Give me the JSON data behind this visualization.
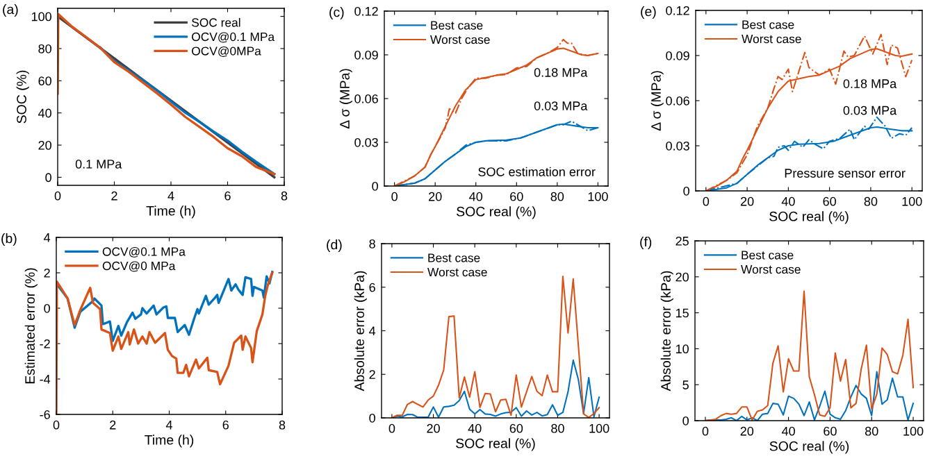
{
  "chart_data": [
    {
      "type": "line",
      "title": "(a)",
      "xlabel": "Time (h)",
      "ylabel": "SOC (%)",
      "xlim": [
        0,
        8
      ],
      "ylim": [
        -5,
        105
      ],
      "xticks": [
        0,
        2,
        4,
        6,
        8
      ],
      "yticks": [
        0,
        20,
        40,
        60,
        80,
        100
      ],
      "grid": false,
      "legend": "top right",
      "annotations": [
        "0.1 MPa"
      ],
      "series": [
        {
          "name": "SOC real",
          "color": "#404040",
          "x": [
            0,
            1,
            2,
            3,
            4,
            5,
            6,
            7,
            7.65
          ],
          "values": [
            100,
            86.9,
            73.9,
            60.8,
            47.7,
            34.6,
            21.6,
            8.5,
            0
          ]
        },
        {
          "name": "OCV@0.1 MPa",
          "color": "#0072bd",
          "x": [
            1.5,
            2,
            2.5,
            3,
            3.5,
            4,
            4.5,
            5,
            5.5,
            6,
            6.5,
            7,
            7.65
          ],
          "values": [
            80.7,
            72.0,
            66.5,
            60.4,
            54.1,
            47.1,
            40.2,
            34.5,
            28.5,
            22.8,
            16.0,
            9.7,
            2.0
          ]
        },
        {
          "name": "OCV@0MPa",
          "color": "#d95319",
          "x": [
            0,
            0.02,
            0.5,
            1,
            1.5,
            2,
            2.5,
            3,
            3.5,
            4,
            4.5,
            5,
            5.5,
            6,
            6.5,
            7,
            7.65
          ],
          "values": [
            52,
            101.5,
            93.7,
            87.2,
            80.6,
            71.5,
            65.7,
            59.0,
            52.3,
            45.2,
            37.6,
            31.4,
            25.1,
            18.1,
            13.1,
            6.5,
            2.0
          ]
        }
      ]
    },
    {
      "type": "line",
      "title": "(b)",
      "xlabel": "Time (h)",
      "ylabel": "Estimated error (%)",
      "xlim": [
        0,
        8
      ],
      "ylim": [
        -6,
        4
      ],
      "xticks": [
        0,
        2,
        4,
        6,
        8
      ],
      "yticks": [
        -6,
        -4,
        -2,
        0,
        2,
        4
      ],
      "grid": false,
      "legend": "top left",
      "series": [
        {
          "name": "OCV@0.1 MPa",
          "color": "#0072bd",
          "x": [
            0,
            0.4,
            0.65,
            0.85,
            1.3,
            1.35,
            1.6,
            1.65,
            1.9,
            2.0,
            2.2,
            2.3,
            2.5,
            2.7,
            2.8,
            3.0,
            3.05,
            3.2,
            3.45,
            3.55,
            3.8,
            3.9,
            3.95,
            4.2,
            4.3,
            4.55,
            4.7,
            4.9,
            5.0,
            5.05,
            5.3,
            5.4,
            5.6,
            5.7,
            5.75,
            6.1,
            6.2,
            6.35,
            6.45,
            6.6,
            6.7,
            6.9,
            6.95,
            7.0,
            7.3,
            7.35,
            7.45,
            7.55,
            7.65
          ],
          "values": [
            1.4,
            0.55,
            -1.1,
            -0.2,
            0.4,
            0.55,
            0.15,
            -0.9,
            -0.75,
            -1.85,
            -1.0,
            -1.55,
            -0.8,
            -0.25,
            -0.6,
            -0.35,
            0.0,
            -0.3,
            0.15,
            -0.35,
            0.05,
            0.1,
            -0.55,
            -0.55,
            -1.35,
            -0.95,
            -1.5,
            -0.5,
            -0.05,
            -0.3,
            0.7,
            0.2,
            0.55,
            0.75,
            0.3,
            1.65,
            1.0,
            1.35,
            1.05,
            0.75,
            1.75,
            1.65,
            0.7,
            1.2,
            1.0,
            0.6,
            1.8,
            1.4,
            2.05
          ]
        },
        {
          "name": "OCV@0 MPa",
          "color": "#d95319",
          "x": [
            0,
            0.02,
            0.4,
            0.65,
            0.85,
            1.2,
            1.3,
            1.55,
            1.6,
            1.9,
            2.0,
            2.2,
            2.3,
            2.55,
            2.6,
            2.75,
            2.9,
            3.05,
            3.2,
            3.3,
            3.5,
            3.85,
            3.95,
            4.1,
            4.25,
            4.3,
            4.5,
            4.6,
            4.7,
            4.95,
            5.05,
            5.35,
            5.4,
            5.7,
            5.8,
            6.1,
            6.3,
            6.55,
            6.6,
            6.7,
            6.9,
            6.95,
            7.1,
            7.3,
            7.4,
            7.5,
            7.65
          ],
          "values": [
            -6,
            1.5,
            0.55,
            -0.95,
            -0.1,
            1.15,
            0.3,
            -0.05,
            -1.2,
            -1.4,
            -2.4,
            -1.6,
            -2.3,
            -1.35,
            -2.05,
            -1.2,
            -2.0,
            -1.6,
            -2.0,
            -1.35,
            -1.95,
            -1.4,
            -2.35,
            -2.7,
            -2.85,
            -3.65,
            -3.65,
            -3.2,
            -3.85,
            -2.9,
            -3.4,
            -2.8,
            -3.5,
            -3.6,
            -4.3,
            -3.25,
            -1.95,
            -1.55,
            -2.35,
            -1.6,
            -2.25,
            -3.05,
            -1.3,
            -0.35,
            0.7,
            1.35,
            2.0
          ]
        }
      ]
    },
    {
      "type": "line",
      "title": "(c)",
      "xlabel": "SOC real (%)",
      "ylabel": "Δ σ (MPa)",
      "xlim": [
        -5,
        105
      ],
      "ylim": [
        0,
        0.12
      ],
      "xticks": [
        0,
        20,
        40,
        60,
        80,
        100
      ],
      "yticks": [
        0,
        0.03,
        0.06,
        0.09,
        0.12
      ],
      "grid": false,
      "legend": "top left",
      "annotations": [
        "0.18 MPa",
        "0.03 MPa",
        "SOC estimation error"
      ],
      "series": [
        {
          "name": "Best case",
          "color": "#0072bd",
          "x": [
            0,
            10,
            15,
            20,
            25,
            30,
            35,
            40,
            45,
            55,
            62,
            70,
            80,
            83,
            90,
            95,
            100
          ],
          "values": [
            0,
            0.002,
            0.005,
            0.011,
            0.017,
            0.022,
            0.027,
            0.03,
            0.031,
            0.0315,
            0.033,
            0.037,
            0.042,
            0.0425,
            0.041,
            0.04,
            0.04
          ]
        },
        {
          "name": "Worst case",
          "color": "#d95319",
          "x": [
            0,
            5,
            10,
            15,
            18,
            20,
            25,
            30,
            35,
            40,
            50,
            55,
            60,
            65,
            70,
            80,
            83,
            88,
            92,
            95,
            100
          ],
          "values": [
            0,
            0.003,
            0.007,
            0.013,
            0.022,
            0.027,
            0.041,
            0.055,
            0.066,
            0.073,
            0.076,
            0.077,
            0.08,
            0.083,
            0.088,
            0.094,
            0.0945,
            0.092,
            0.09,
            0.0895,
            0.091
          ]
        },
        {
          "color": "#0072bd",
          "line_style": "dashdot",
          "x": [
            0,
            10,
            15,
            20,
            25,
            30,
            35,
            40,
            45,
            55,
            62,
            70,
            80,
            83,
            87,
            95,
            100
          ],
          "values": [
            0,
            0.002,
            0.005,
            0.011,
            0.017,
            0.022,
            0.028,
            0.03,
            0.031,
            0.031,
            0.033,
            0.037,
            0.042,
            0.042,
            0.0445,
            0.038,
            0.04
          ]
        },
        {
          "color": "#d95319",
          "line_style": "dashdot",
          "x": [
            0,
            10,
            15,
            18,
            22,
            25,
            27,
            28,
            30,
            33,
            36,
            40,
            45,
            50,
            55,
            60,
            65,
            70,
            75,
            80,
            83,
            85,
            87,
            90,
            95,
            100
          ],
          "values": [
            0,
            0.007,
            0.013,
            0.022,
            0.032,
            0.04,
            0.053,
            0.052,
            0.05,
            0.06,
            0.067,
            0.074,
            0.074,
            0.076,
            0.0765,
            0.081,
            0.082,
            0.088,
            0.091,
            0.095,
            0.1005,
            0.098,
            0.098,
            0.091,
            0.0895,
            0.091
          ]
        }
      ]
    },
    {
      "type": "line",
      "title": "(d)",
      "xlabel": "SOC real (%)",
      "ylabel": "Absolute error (kPa)",
      "xlim": [
        -5,
        105
      ],
      "ylim": [
        0,
        8
      ],
      "xticks": [
        0,
        20,
        40,
        60,
        80,
        100
      ],
      "yticks": [
        0,
        2,
        4,
        6,
        8
      ],
      "grid": false,
      "legend": "top left",
      "x": [
        0,
        2.5,
        5,
        7.5,
        10,
        12.5,
        15,
        17.5,
        20,
        22.5,
        25,
        27.5,
        30,
        32.5,
        35,
        37.5,
        40,
        42.5,
        45,
        47.5,
        50,
        52.5,
        55,
        57.5,
        60,
        62.5,
        65,
        67.5,
        70,
        72.5,
        75,
        77.5,
        80,
        82.5,
        85,
        87.5,
        90,
        92.5,
        95,
        97.5,
        100
      ],
      "series": [
        {
          "name": "Best case",
          "color": "#0072bd",
          "values": [
            0,
            0.08,
            0.05,
            0.16,
            0.15,
            0.03,
            0.03,
            0.03,
            0.5,
            0.03,
            0.5,
            0.53,
            0.58,
            0.8,
            1.22,
            0.4,
            0.18,
            0.38,
            0.18,
            0.16,
            0.08,
            0.18,
            0.24,
            0.26,
            0.47,
            0.08,
            0.32,
            0.13,
            0.25,
            0.09,
            0.15,
            0.6,
            0.12,
            0.25,
            1.2,
            2.65,
            1.75,
            0.2,
            1.85,
            0.05,
            0.95
          ]
        },
        {
          "name": "Worst case",
          "color": "#d95319",
          "values": [
            0,
            0.12,
            0.12,
            0.62,
            0.75,
            0.62,
            0.5,
            0.82,
            1.0,
            1.5,
            2.2,
            4.65,
            4.68,
            0.92,
            1.88,
            0.95,
            2.12,
            0.48,
            1.12,
            1.1,
            0.28,
            0.82,
            0.85,
            0.12,
            1.97,
            0.5,
            1.2,
            1.9,
            1.22,
            1.02,
            1.97,
            1.2,
            1.2,
            6.5,
            3.9,
            6.38,
            3.3,
            0.18,
            0.02,
            0.2,
            0.47
          ]
        }
      ]
    },
    {
      "type": "line",
      "title": "(e)",
      "xlabel": "SOC real (%)",
      "ylabel": "Δ σ (MPa)",
      "xlim": [
        -5,
        105
      ],
      "ylim": [
        0,
        0.12
      ],
      "xticks": [
        0,
        20,
        40,
        60,
        80,
        100
      ],
      "yticks": [
        0,
        0.03,
        0.06,
        0.09,
        0.12
      ],
      "grid": false,
      "legend": "top left",
      "annotations": [
        "0.18 MPa",
        "0.03 MPa",
        "Pressure sensor error"
      ],
      "series": [
        {
          "name": "Best case",
          "color": "#0072bd",
          "x": [
            0,
            10,
            15,
            20,
            25,
            30,
            35,
            40,
            45,
            55,
            62,
            70,
            80,
            83,
            90,
            95,
            100
          ],
          "values": [
            0,
            0.002,
            0.005,
            0.011,
            0.017,
            0.022,
            0.027,
            0.03,
            0.031,
            0.0315,
            0.033,
            0.037,
            0.042,
            0.0425,
            0.041,
            0.04,
            0.04
          ]
        },
        {
          "name": "Worst case",
          "color": "#d95319",
          "x": [
            0,
            5,
            10,
            15,
            18,
            20,
            25,
            30,
            35,
            40,
            50,
            55,
            60,
            65,
            70,
            80,
            83,
            88,
            92,
            95,
            100
          ],
          "values": [
            0,
            0.003,
            0.007,
            0.013,
            0.022,
            0.027,
            0.041,
            0.055,
            0.066,
            0.073,
            0.076,
            0.077,
            0.08,
            0.083,
            0.088,
            0.094,
            0.0945,
            0.092,
            0.09,
            0.0895,
            0.091
          ]
        },
        {
          "color": "#0072bd",
          "line_style": "dashdot",
          "x": [
            0,
            15,
            20,
            30,
            33,
            35,
            38,
            40,
            43,
            47,
            50,
            53,
            57,
            60,
            65,
            70,
            72,
            77,
            79,
            83,
            87,
            90,
            94,
            97,
            100
          ],
          "values": [
            0,
            0.005,
            0.011,
            0.022,
            0.023,
            0.029,
            0.03,
            0.027,
            0.033,
            0.029,
            0.034,
            0.031,
            0.028,
            0.033,
            0.035,
            0.041,
            0.034,
            0.043,
            0.041,
            0.049,
            0.043,
            0.035,
            0.038,
            0.037,
            0.042
          ]
        },
        {
          "color": "#d95319",
          "line_style": "dashdot",
          "x": [
            0,
            10,
            15,
            20,
            25,
            30,
            33,
            35,
            37,
            40,
            42,
            48,
            50,
            55,
            60,
            63,
            67,
            69,
            72,
            77,
            81,
            85,
            88,
            90,
            93,
            97,
            100
          ],
          "values": [
            0,
            0.007,
            0.012,
            0.024,
            0.043,
            0.055,
            0.068,
            0.076,
            0.074,
            0.081,
            0.066,
            0.092,
            0.082,
            0.077,
            0.081,
            0.071,
            0.093,
            0.089,
            0.09,
            0.103,
            0.091,
            0.104,
            0.084,
            0.097,
            0.095,
            0.076,
            0.087
          ]
        }
      ]
    },
    {
      "type": "line",
      "title": "(f)",
      "xlabel": "SOC real (%)",
      "ylabel": "Absolute error (kPa)",
      "xlim": [
        -5,
        105
      ],
      "ylim": [
        0,
        25
      ],
      "xticks": [
        0,
        20,
        40,
        60,
        80,
        100
      ],
      "yticks": [
        0,
        5,
        10,
        15,
        20,
        25
      ],
      "grid": false,
      "legend": "top left",
      "x": [
        0,
        2.5,
        5,
        7.5,
        10,
        12.5,
        15,
        17.5,
        20,
        22.5,
        25,
        27.5,
        30,
        32.5,
        35,
        37.5,
        40,
        42.5,
        45,
        47.5,
        50,
        52.5,
        55,
        57.5,
        60,
        62.5,
        65,
        67.5,
        70,
        72.5,
        75,
        77.5,
        80,
        82.5,
        85,
        87.5,
        90,
        92.5,
        95,
        97.5,
        100
      ],
      "series": [
        {
          "name": "Best case",
          "color": "#0072bd",
          "values": [
            0,
            0.1,
            0.1,
            0.1,
            0.2,
            0.4,
            0,
            0.6,
            0.1,
            0.4,
            0,
            0.9,
            1.0,
            2.4,
            2.3,
            0.8,
            3.4,
            3.1,
            2.3,
            0.7,
            2.6,
            0.1,
            2.0,
            4.1,
            0.9,
            0.4,
            0.2,
            1.4,
            3.3,
            4.9,
            3.7,
            3.1,
            0.7,
            6.8,
            2.3,
            2.9,
            5.9,
            3.3,
            3.3,
            0.1,
            2.4
          ]
        },
        {
          "name": "Worst case",
          "color": "#d95319",
          "values": [
            0,
            0.1,
            0.2,
            0.7,
            1.0,
            0.9,
            1.0,
            1.9,
            1.9,
            0.1,
            1.3,
            1.5,
            2.1,
            8.0,
            10.4,
            4.0,
            8.6,
            6.9,
            6.9,
            18.0,
            6.1,
            3.6,
            0.8,
            0.6,
            1.8,
            9.4,
            5.5,
            8.5,
            1.8,
            2.4,
            7.2,
            10.5,
            1.6,
            3.7,
            10.1,
            9.2,
            6.8,
            6.5,
            9.1,
            14.1,
            4.6
          ]
        }
      ]
    }
  ]
}
